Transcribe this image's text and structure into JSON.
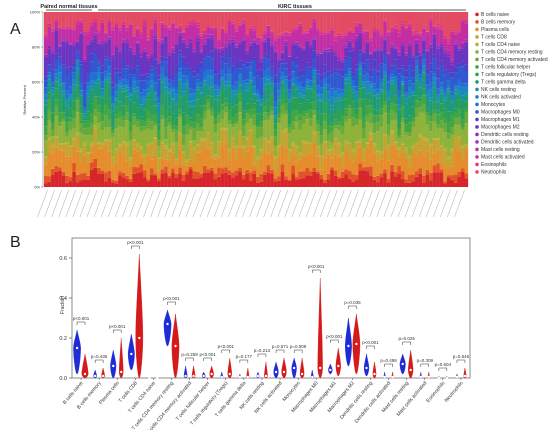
{
  "panels": {
    "a_label": "A",
    "b_label": "B"
  },
  "chart_data": [
    {
      "type": "bar",
      "stacked": true,
      "title": "",
      "ylabel": "Relative Percent",
      "xlabel": "",
      "ylim": [
        0,
        100
      ],
      "y_ticks": [
        "0%",
        "20%",
        "40%",
        "60%",
        "80%",
        "100%"
      ],
      "groups": [
        {
          "label": "Paired normal tissues"
        },
        {
          "label": "KIRC tissues"
        }
      ],
      "legend_position": "right",
      "legend": [
        {
          "name": "B cells naive",
          "color": "#d7262b"
        },
        {
          "name": "B cells memory",
          "color": "#e1542a"
        },
        {
          "name": "Plasma cells",
          "color": "#e58c2d"
        },
        {
          "name": "T cells CD8",
          "color": "#c7a232"
        },
        {
          "name": "T cells CD4 naive",
          "color": "#b3b436"
        },
        {
          "name": "T cells CD4 memory resting",
          "color": "#8fb23b"
        },
        {
          "name": "T cells CD4 memory activated",
          "color": "#67ab3f"
        },
        {
          "name": "T cells follicular helper",
          "color": "#43a645"
        },
        {
          "name": "T cells regulatory (Tregs)",
          "color": "#2a9f55"
        },
        {
          "name": "T cells gamma delta",
          "color": "#1f9a78"
        },
        {
          "name": "NK cells resting",
          "color": "#1b93a0"
        },
        {
          "name": "NK cells activated",
          "color": "#1a87c2"
        },
        {
          "name": "Monocytes",
          "color": "#2270d2"
        },
        {
          "name": "Macrophages M0",
          "color": "#3158d1"
        },
        {
          "name": "Macrophages M1",
          "color": "#4a42c8"
        },
        {
          "name": "Macrophages M2",
          "color": "#6a35c0"
        },
        {
          "name": "Dendritic cells resting",
          "color": "#8a2fb8"
        },
        {
          "name": "Dendritic cells activated",
          "color": "#a82db0"
        },
        {
          "name": "Mast cells resting",
          "color": "#c22ea4"
        },
        {
          "name": "Mast cells activated",
          "color": "#d23092"
        },
        {
          "name": "Eosinophils",
          "color": "#de3a7b"
        },
        {
          "name": "Neutrophils",
          "color": "#e34b63"
        }
      ],
      "mean_composition": [
        6,
        3,
        9,
        6,
        1,
        9,
        4,
        4,
        5,
        6,
        2,
        3,
        3,
        6,
        3,
        9,
        1,
        1,
        8,
        1,
        1,
        9
      ],
      "sample_count": 120,
      "sample_labels_visible": false
    },
    {
      "type": "violin",
      "title": "",
      "ylabel": "Fraction",
      "xlabel": "",
      "ylim": [
        0,
        0.7
      ],
      "y_ticks": [
        "0.0",
        "0.2",
        "0.4",
        "0.6"
      ],
      "series_colors": {
        "normal": "#1f2bd6",
        "tumor": "#d41a1a"
      },
      "categories": [
        {
          "name": "B cells naive",
          "p": "p<0.001",
          "normal": {
            "median": 0.15,
            "max": 0.24,
            "min": 0.02,
            "width": 0.9
          },
          "tumor": {
            "median": 0.02,
            "max": 0.12,
            "min": 0.0,
            "width": 0.8
          }
        },
        {
          "name": "B cells memory",
          "p": "p=0.436",
          "normal": {
            "median": 0.01,
            "max": 0.04,
            "min": 0.0,
            "width": 0.4
          },
          "tumor": {
            "median": 0.01,
            "max": 0.05,
            "min": 0.0,
            "width": 0.4
          }
        },
        {
          "name": "Plasma cells",
          "p": "p<0.001",
          "normal": {
            "median": 0.06,
            "max": 0.14,
            "min": 0.0,
            "width": 0.7
          },
          "tumor": {
            "median": 0.03,
            "max": 0.2,
            "min": 0.0,
            "width": 0.5
          }
        },
        {
          "name": "T cells CD8",
          "p": "p<0.001",
          "normal": {
            "median": 0.12,
            "max": 0.22,
            "min": 0.04,
            "width": 0.8
          },
          "tumor": {
            "median": 0.2,
            "max": 0.62,
            "min": 0.0,
            "width": 0.9
          }
        },
        {
          "name": "T cells CD4 naive",
          "p": "",
          "normal": {
            "median": 0.0,
            "max": 0.005,
            "min": 0.0,
            "width": 0.1
          },
          "tumor": {
            "median": 0.0,
            "max": 0.005,
            "min": 0.0,
            "width": 0.1
          }
        },
        {
          "name": "T cells CD4 memory resting",
          "p": "p<0.001",
          "normal": {
            "median": 0.27,
            "max": 0.34,
            "min": 0.16,
            "width": 0.9
          },
          "tumor": {
            "median": 0.16,
            "max": 0.32,
            "min": 0.0,
            "width": 0.9
          }
        },
        {
          "name": "T cells CD4 memory activated",
          "p": "p=0.259",
          "normal": {
            "median": 0.01,
            "max": 0.06,
            "min": 0.0,
            "width": 0.4
          },
          "tumor": {
            "median": 0.01,
            "max": 0.06,
            "min": 0.0,
            "width": 0.4
          }
        },
        {
          "name": "T cells follicular helper",
          "p": "p<0.001",
          "normal": {
            "median": 0.01,
            "max": 0.03,
            "min": 0.0,
            "width": 0.4
          },
          "tumor": {
            "median": 0.02,
            "max": 0.06,
            "min": 0.0,
            "width": 0.5
          }
        },
        {
          "name": "T cells regulatory (Tregs)",
          "p": "p<0.001",
          "normal": {
            "median": 0.005,
            "max": 0.03,
            "min": 0.0,
            "width": 0.3
          },
          "tumor": {
            "median": 0.02,
            "max": 0.1,
            "min": 0.0,
            "width": 0.5
          }
        },
        {
          "name": "T cells gamma delta",
          "p": "p=0.177",
          "normal": {
            "median": 0.005,
            "max": 0.02,
            "min": 0.0,
            "width": 0.2
          },
          "tumor": {
            "median": 0.005,
            "max": 0.05,
            "min": 0.0,
            "width": 0.3
          }
        },
        {
          "name": "NK cells resting",
          "p": "p=0.213",
          "normal": {
            "median": 0.01,
            "max": 0.03,
            "min": 0.0,
            "width": 0.3
          },
          "tumor": {
            "median": 0.01,
            "max": 0.08,
            "min": 0.0,
            "width": 0.4
          }
        },
        {
          "name": "NK cells activated",
          "p": "p=0.571",
          "normal": {
            "median": 0.03,
            "max": 0.08,
            "min": 0.0,
            "width": 0.6
          },
          "tumor": {
            "median": 0.03,
            "max": 0.1,
            "min": 0.0,
            "width": 0.6
          }
        },
        {
          "name": "Monocytes",
          "p": "p=0.009",
          "normal": {
            "median": 0.05,
            "max": 0.1,
            "min": 0.0,
            "width": 0.6
          },
          "tumor": {
            "median": 0.02,
            "max": 0.1,
            "min": 0.0,
            "width": 0.5
          }
        },
        {
          "name": "Macrophages M0",
          "p": "p<0.001",
          "normal": {
            "median": 0.005,
            "max": 0.04,
            "min": 0.0,
            "width": 0.3
          },
          "tumor": {
            "median": 0.05,
            "max": 0.5,
            "min": 0.0,
            "width": 0.6
          }
        },
        {
          "name": "Macrophages M1",
          "p": "p<0.001",
          "normal": {
            "median": 0.04,
            "max": 0.07,
            "min": 0.02,
            "width": 0.5
          },
          "tumor": {
            "median": 0.06,
            "max": 0.15,
            "min": 0.01,
            "width": 0.6
          }
        },
        {
          "name": "Macrophages M2",
          "p": "p=0.035",
          "normal": {
            "median": 0.16,
            "max": 0.3,
            "min": 0.06,
            "width": 0.8
          },
          "tumor": {
            "median": 0.17,
            "max": 0.32,
            "min": 0.02,
            "width": 0.9
          }
        },
        {
          "name": "Dendritic cells resting",
          "p": "p<0.001",
          "normal": {
            "median": 0.05,
            "max": 0.12,
            "min": 0.01,
            "width": 0.6
          },
          "tumor": {
            "median": 0.02,
            "max": 0.08,
            "min": 0.0,
            "width": 0.4
          }
        },
        {
          "name": "Dendritic cells activated",
          "p": "p=0.498",
          "normal": {
            "median": 0.005,
            "max": 0.03,
            "min": 0.0,
            "width": 0.2
          },
          "tumor": {
            "median": 0.005,
            "max": 0.03,
            "min": 0.0,
            "width": 0.2
          }
        },
        {
          "name": "Mast cells resting",
          "p": "p=0.025",
          "normal": {
            "median": 0.07,
            "max": 0.12,
            "min": 0.02,
            "width": 0.7
          },
          "tumor": {
            "median": 0.04,
            "max": 0.14,
            "min": 0.0,
            "width": 0.6
          }
        },
        {
          "name": "Mast cells activated",
          "p": "p=0.309",
          "normal": {
            "median": 0.005,
            "max": 0.03,
            "min": 0.0,
            "width": 0.2
          },
          "tumor": {
            "median": 0.005,
            "max": 0.03,
            "min": 0.0,
            "width": 0.2
          }
        },
        {
          "name": "Eosinophils",
          "p": "p=0.604",
          "normal": {
            "median": 0.0,
            "max": 0.01,
            "min": 0.0,
            "width": 0.15
          },
          "tumor": {
            "median": 0.0,
            "max": 0.01,
            "min": 0.0,
            "width": 0.15
          }
        },
        {
          "name": "Neutrophils",
          "p": "p=0.545",
          "normal": {
            "median": 0.005,
            "max": 0.02,
            "min": 0.0,
            "width": 0.2
          },
          "tumor": {
            "median": 0.01,
            "max": 0.05,
            "min": 0.0,
            "width": 0.3
          }
        }
      ]
    }
  ]
}
